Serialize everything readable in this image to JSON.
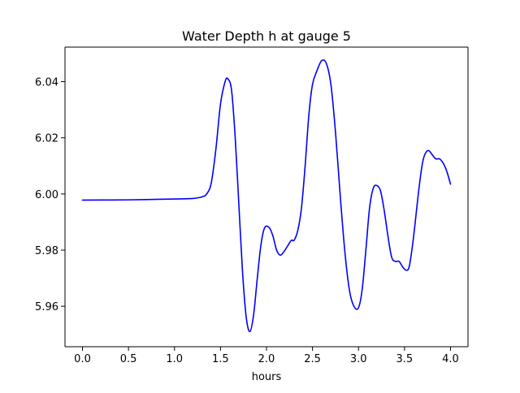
{
  "chart_data": {
    "type": "line",
    "title": "Water Depth h at gauge 5",
    "xlabel": "hours",
    "ylabel": "",
    "xlim": [
      -0.19,
      4.19
    ],
    "ylim": [
      5.9456,
      6.0523
    ],
    "xticks": [
      0.0,
      0.5,
      1.0,
      1.5,
      2.0,
      2.5,
      3.0,
      3.5,
      4.0
    ],
    "xtick_labels": [
      "0.0",
      "0.5",
      "1.0",
      "1.5",
      "2.0",
      "2.5",
      "3.0",
      "3.5",
      "4.0"
    ],
    "yticks": [
      5.96,
      5.98,
      6.0,
      6.02,
      6.04
    ],
    "ytick_labels": [
      "5.96",
      "5.98",
      "6.00",
      "6.02",
      "6.04"
    ],
    "grid": false,
    "series": [
      {
        "color": "#0000ff",
        "x": [
          0.0,
          0.5,
          1.0,
          1.2,
          1.3,
          1.35,
          1.4,
          1.45,
          1.5,
          1.55,
          1.58,
          1.62,
          1.66,
          1.7,
          1.74,
          1.78,
          1.82,
          1.86,
          1.9,
          1.94,
          1.98,
          2.03,
          2.07,
          2.11,
          2.15,
          2.19,
          2.23,
          2.27,
          2.3,
          2.34,
          2.38,
          2.42,
          2.46,
          2.5,
          2.55,
          2.6,
          2.65,
          2.7,
          2.75,
          2.8,
          2.85,
          2.9,
          2.95,
          3.0,
          3.04,
          3.08,
          3.12,
          3.16,
          3.2,
          3.24,
          3.28,
          3.32,
          3.36,
          3.4,
          3.44,
          3.48,
          3.52,
          3.55,
          3.58,
          3.61,
          3.65,
          3.69,
          3.72,
          3.76,
          3.8,
          3.84,
          3.88,
          3.92,
          3.96,
          4.0
        ],
        "y": [
          5.9978,
          5.9979,
          5.9982,
          5.9984,
          5.999,
          6.0,
          6.004,
          6.016,
          6.032,
          6.04,
          6.041,
          6.037,
          6.02,
          5.996,
          5.972,
          5.956,
          5.951,
          5.957,
          5.97,
          5.982,
          5.988,
          5.988,
          5.985,
          5.98,
          5.9782,
          5.9795,
          5.9815,
          5.9835,
          5.9835,
          5.987,
          5.995,
          6.01,
          6.028,
          6.039,
          6.044,
          6.0475,
          6.0465,
          6.039,
          6.022,
          6.0,
          5.98,
          5.966,
          5.96,
          5.9595,
          5.966,
          5.98,
          5.995,
          6.002,
          6.003,
          6.001,
          5.994,
          5.985,
          5.9775,
          5.976,
          5.976,
          5.974,
          5.9728,
          5.974,
          5.98,
          5.988,
          6.0,
          6.01,
          6.014,
          6.0155,
          6.014,
          6.0125,
          6.0125,
          6.011,
          6.008,
          6.0035
        ]
      }
    ]
  }
}
